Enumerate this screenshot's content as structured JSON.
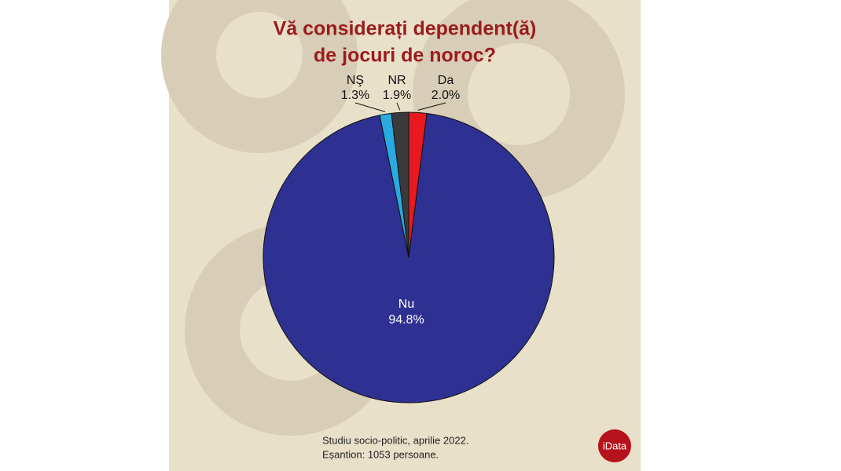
{
  "chart_data": {
    "type": "pie",
    "title": [
      "Vă considerați dependent(ă)",
      "de jocuri de noroc?"
    ],
    "categories": [
      "Da",
      "Nu",
      "NŞ",
      "NR"
    ],
    "values": [
      2.0,
      94.8,
      1.3,
      1.9
    ],
    "value_labels": [
      "2.0%",
      "94.8%",
      "1.3%",
      "1.9%"
    ],
    "colors": [
      "#e8191f",
      "#2e3192",
      "#29abe2",
      "#3a3a3c"
    ],
    "source": [
      "Studiu socio-politic, aprilie 2022.",
      "Eșantion: 1053 persoane."
    ],
    "logo": "iData"
  }
}
